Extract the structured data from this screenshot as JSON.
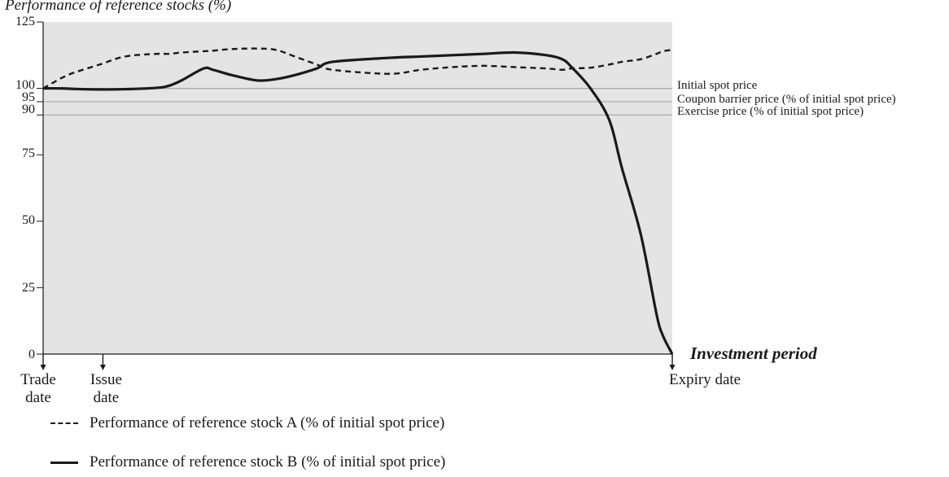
{
  "chart_data": {
    "type": "line",
    "title": "Performance of reference stocks (%)",
    "x": [
      0,
      0.03,
      0.05,
      0.09,
      0.13,
      0.18,
      0.2,
      0.22,
      0.255,
      0.27,
      0.3,
      0.34,
      0.37,
      0.4,
      0.435,
      0.46,
      0.55,
      0.6,
      0.65,
      0.7,
      0.75,
      0.8,
      0.825,
      0.84,
      0.87,
      0.9,
      0.92,
      0.95,
      0.975,
      0.985,
      1.0
    ],
    "series": [
      {
        "name": "Performance of reference stock A (% of initial spot price)",
        "style": "dashed",
        "values": [
          100,
          104,
          106,
          109,
          112,
          113,
          113,
          113.5,
          114,
          114.2,
          114.8,
          115,
          114.5,
          112,
          109,
          107,
          105.5,
          107,
          108,
          108.5,
          108,
          107.5,
          107,
          107.5,
          107.8,
          109,
          110,
          111,
          113,
          114,
          114.5
        ]
      },
      {
        "name": "Performance of reference stock B (% of initial spot price)",
        "style": "solid",
        "values": [
          100,
          100,
          99.8,
          99.6,
          99.7,
          100.2,
          101,
          103,
          107.5,
          107,
          105,
          103,
          103.5,
          105,
          107.5,
          110,
          111.5,
          112,
          112.5,
          113,
          113.5,
          112.5,
          111,
          108,
          100,
          88,
          70,
          45,
          15,
          7,
          0
        ]
      }
    ],
    "ylim": [
      0,
      125
    ],
    "yticks": [
      0,
      25,
      50,
      75,
      90,
      95,
      100,
      125
    ],
    "reference_lines": [
      {
        "value": 100,
        "label": "Initial spot price"
      },
      {
        "value": 95,
        "label": "Coupon barrier price (% of initial spot price)"
      },
      {
        "value": 90,
        "label": "Exercise price (% of initial spot price)"
      }
    ],
    "x_markers": [
      {
        "at": 0,
        "label_lines": [
          "Trade",
          "date"
        ]
      },
      {
        "at": 0.095,
        "label_lines": [
          "Issue",
          "date"
        ]
      },
      {
        "at": 1.0,
        "label_lines": [
          "Expiry date"
        ]
      }
    ],
    "xlabel": "Investment period",
    "grid": false,
    "legend_position": "bottom-left",
    "colors": {
      "plot_background": "#e4e4e4",
      "line": "#1a1a1a",
      "reference_line": "#a8a8a8"
    }
  }
}
